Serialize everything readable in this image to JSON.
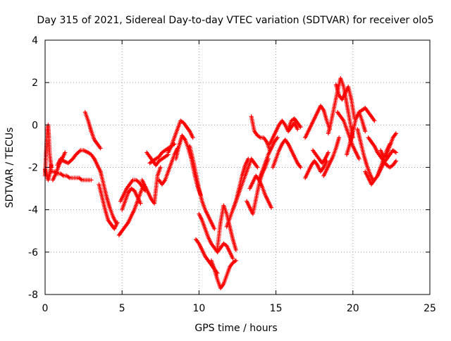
{
  "chart_data": {
    "type": "scatter",
    "title": "Day 315 of 2021, Sidereal Day-to-day VTEC variation (SDTVAR) for receiver olo5",
    "xlabel": "GPS time / hours",
    "ylabel": "SDTVAR / TECUs",
    "xlim": [
      0,
      25
    ],
    "ylim": [
      -8,
      4
    ],
    "xticks": [
      0,
      5,
      10,
      15,
      20,
      25
    ],
    "yticks": [
      -8,
      -6,
      -4,
      -2,
      0,
      2,
      4
    ],
    "grid": true,
    "legend": "none",
    "marker": "+",
    "color": "#ff0000",
    "series": [
      {
        "x": [
          0.0,
          0.05,
          0.1,
          0.15,
          0.2,
          0.25,
          0.3,
          0.4
        ],
        "y": [
          -2.4,
          -1.5,
          -0.8,
          -0.2,
          0.0,
          -0.6,
          -1.4,
          -2.0
        ]
      },
      {
        "x": [
          0.0,
          0.1,
          0.2,
          0.3,
          0.4
        ],
        "y": [
          -2.1,
          -2.4,
          -2.6,
          -2.3,
          -1.9
        ]
      },
      {
        "x": [
          0.4,
          0.6,
          0.8,
          1.0,
          1.2,
          1.4,
          1.6,
          1.8,
          2.0,
          2.2,
          2.4,
          2.6,
          2.8,
          3.0
        ],
        "y": [
          -2.2,
          -2.2,
          -2.3,
          -2.3,
          -2.4,
          -2.4,
          -2.5,
          -2.5,
          -2.5,
          -2.5,
          -2.6,
          -2.6,
          -2.6,
          -2.6
        ]
      },
      {
        "x": [
          0.8,
          1.0,
          1.2,
          1.5,
          1.8,
          2.0,
          2.3,
          2.5,
          2.8,
          3.0,
          3.2,
          3.4,
          3.6
        ],
        "y": [
          -1.9,
          -1.6,
          -1.7,
          -1.8,
          -1.6,
          -1.4,
          -1.2,
          -1.2,
          -1.3,
          -1.4,
          -1.6,
          -1.9,
          -2.2
        ]
      },
      {
        "x": [
          0.5,
          0.7,
          0.9,
          1.1,
          1.3
        ],
        "y": [
          -2.6,
          -2.3,
          -1.9,
          -1.6,
          -1.3
        ]
      },
      {
        "x": [
          2.6,
          2.8,
          3.0,
          3.2,
          3.4,
          3.6
        ],
        "y": [
          0.6,
          0.2,
          -0.3,
          -0.7,
          -0.9,
          -1.1
        ]
      },
      {
        "x": [
          3.6,
          3.8,
          4.0,
          4.2,
          4.4,
          4.6
        ],
        "y": [
          -2.2,
          -2.8,
          -3.4,
          -3.9,
          -4.3,
          -4.6
        ]
      },
      {
        "x": [
          3.5,
          3.7,
          3.9,
          4.1,
          4.3,
          4.5,
          4.7
        ],
        "y": [
          -2.8,
          -3.4,
          -4.0,
          -4.5,
          -4.7,
          -4.9,
          -4.6
        ]
      },
      {
        "x": [
          4.8,
          5.0,
          5.2,
          5.4,
          5.6,
          5.8,
          6.0,
          6.2,
          6.4
        ],
        "y": [
          -5.2,
          -5.0,
          -4.8,
          -4.6,
          -4.3,
          -4.0,
          -3.6,
          -3.2,
          -2.8
        ]
      },
      {
        "x": [
          4.9,
          5.1,
          5.3,
          5.5,
          5.7,
          5.9,
          6.1,
          6.3,
          6.5
        ],
        "y": [
          -3.6,
          -3.3,
          -3.0,
          -2.8,
          -2.6,
          -2.6,
          -2.7,
          -2.9,
          -3.1
        ]
      },
      {
        "x": [
          5.0,
          5.2,
          5.4,
          5.6,
          5.8,
          6.0,
          6.2
        ],
        "y": [
          -4.0,
          -3.6,
          -3.2,
          -3.0,
          -3.1,
          -3.4,
          -3.7
        ]
      },
      {
        "x": [
          6.3,
          6.5,
          6.7,
          6.9,
          7.1,
          7.3,
          7.5
        ],
        "y": [
          -2.6,
          -2.9,
          -3.2,
          -3.5,
          -3.7,
          -2.4,
          -2.0
        ]
      },
      {
        "x": [
          6.6,
          6.8,
          7.0,
          7.2,
          7.4,
          7.6,
          7.8,
          8.0
        ],
        "y": [
          -1.3,
          -1.5,
          -1.7,
          -1.9,
          -1.7,
          -1.6,
          -1.5,
          -1.4
        ]
      },
      {
        "x": [
          6.8,
          7.0,
          7.2,
          7.4,
          7.6,
          7.8,
          8.0,
          8.2,
          8.4
        ],
        "y": [
          -1.8,
          -1.7,
          -1.6,
          -1.5,
          -1.3,
          -1.2,
          -1.1,
          -1.0,
          -0.9
        ]
      },
      {
        "x": [
          7.4,
          7.6,
          7.8,
          8.0,
          8.2,
          8.4,
          8.6
        ],
        "y": [
          -2.6,
          -2.8,
          -2.6,
          -2.2,
          -1.8,
          -1.4,
          -1.1
        ]
      },
      {
        "x": [
          8.0,
          8.2,
          8.4,
          8.6,
          8.8,
          9.0,
          9.2,
          9.4,
          9.6
        ],
        "y": [
          -1.3,
          -1.0,
          -0.6,
          -0.2,
          0.2,
          0.1,
          -0.1,
          -0.3,
          -0.6
        ]
      },
      {
        "x": [
          8.5,
          8.7,
          8.9,
          9.1,
          9.3,
          9.5,
          9.7,
          9.9,
          10.1
        ],
        "y": [
          -1.6,
          -1.0,
          -0.5,
          -0.7,
          -1.1,
          -1.6,
          -2.3,
          -2.9,
          -3.3
        ]
      },
      {
        "x": [
          9.4,
          9.6,
          9.8,
          10.0,
          10.2,
          10.4,
          10.6,
          10.8,
          11.0
        ],
        "y": [
          -1.0,
          -1.6,
          -2.3,
          -3.0,
          -3.6,
          -4.0,
          -4.3,
          -4.6,
          -4.9
        ]
      },
      {
        "x": [
          9.8,
          10.0,
          10.2,
          10.4,
          10.6,
          10.8,
          11.0,
          11.2
        ],
        "y": [
          -5.4,
          -5.6,
          -5.9,
          -6.2,
          -6.4,
          -6.6,
          -6.8,
          -7.0
        ]
      },
      {
        "x": [
          10.0,
          10.2,
          10.4,
          10.6,
          10.8,
          11.0,
          11.2,
          11.4,
          11.6,
          11.8,
          12.0,
          12.2
        ],
        "y": [
          -4.2,
          -4.5,
          -4.9,
          -5.3,
          -5.6,
          -5.8,
          -6.0,
          -5.8,
          -5.6,
          -5.7,
          -6.0,
          -6.3
        ]
      },
      {
        "x": [
          10.8,
          11.0,
          11.2,
          11.4,
          11.6,
          11.8,
          12.0,
          12.2,
          12.4
        ],
        "y": [
          -6.4,
          -6.8,
          -7.3,
          -7.7,
          -7.5,
          -7.1,
          -6.7,
          -6.5,
          -6.4
        ]
      },
      {
        "x": [
          11.2,
          11.4,
          11.6,
          11.8,
          12.0,
          12.2,
          12.4
        ],
        "y": [
          -5.8,
          -4.6,
          -3.8,
          -4.2,
          -4.8,
          -5.4,
          -5.9
        ]
      },
      {
        "x": [
          11.8,
          12.0,
          12.2,
          12.4,
          12.6,
          12.8,
          13.0,
          13.2
        ],
        "y": [
          -4.8,
          -4.4,
          -4.0,
          -3.6,
          -3.0,
          -2.4,
          -1.9,
          -1.6
        ]
      },
      {
        "x": [
          12.2,
          12.4,
          12.6,
          12.8,
          13.0,
          13.2,
          13.4,
          13.6,
          13.8
        ],
        "y": [
          -4.0,
          -3.6,
          -3.2,
          -2.8,
          -2.4,
          -2.0,
          -1.6,
          -1.8,
          -2.0
        ]
      },
      {
        "x": [
          13.1,
          13.3,
          13.5,
          13.7,
          13.9,
          14.1,
          14.3,
          14.5
        ],
        "y": [
          -3.6,
          -3.9,
          -4.2,
          -3.5,
          -2.8,
          -2.3,
          -2.0,
          -1.6
        ]
      },
      {
        "x": [
          13.3,
          13.5,
          13.7,
          13.9,
          14.1,
          14.3,
          14.5,
          14.7
        ],
        "y": [
          -3.0,
          -2.7,
          -2.4,
          -2.6,
          -2.9,
          -3.3,
          -3.6,
          -3.9
        ]
      },
      {
        "x": [
          13.4,
          13.6,
          13.8,
          14.0,
          14.2,
          14.4,
          14.6
        ],
        "y": [
          0.4,
          -0.3,
          -0.5,
          -0.6,
          -0.6,
          -0.8,
          -1.2
        ]
      },
      {
        "x": [
          13.9,
          14.1,
          14.3,
          14.5,
          14.7,
          14.9,
          15.1
        ],
        "y": [
          -2.6,
          -2.2,
          -1.8,
          -1.4,
          -1.1,
          -0.8,
          -0.6
        ]
      },
      {
        "x": [
          14.6,
          14.8,
          15.0,
          15.2,
          15.4,
          15.6,
          15.8,
          16.0,
          16.2,
          16.4
        ],
        "y": [
          -0.9,
          -0.6,
          -0.3,
          0.0,
          0.2,
          0.0,
          -0.3,
          -0.1,
          0.1,
          -0.2
        ]
      },
      {
        "x": [
          14.8,
          15.0,
          15.2,
          15.4,
          15.6,
          15.8,
          16.0,
          16.2,
          16.4,
          16.6
        ],
        "y": [
          -2.0,
          -1.6,
          -1.2,
          -0.9,
          -0.7,
          -0.9,
          -1.2,
          -1.5,
          -1.8,
          -2.0
        ]
      },
      {
        "x": [
          15.8,
          16.0,
          16.2,
          16.4,
          16.6
        ],
        "y": [
          -0.2,
          0.2,
          0.3,
          0.1,
          -0.1
        ]
      },
      {
        "x": [
          16.9,
          17.1,
          17.3,
          17.5,
          17.7,
          17.9,
          18.1,
          18.3,
          18.5
        ],
        "y": [
          -0.6,
          -0.3,
          0.0,
          0.3,
          0.6,
          0.9,
          0.7,
          0.2,
          -0.2
        ]
      },
      {
        "x": [
          16.9,
          17.1,
          17.3,
          17.5,
          17.7,
          17.9,
          18.1,
          18.3
        ],
        "y": [
          -2.5,
          -2.2,
          -1.9,
          -1.7,
          -1.9,
          -2.2,
          -2.0,
          -1.7
        ]
      },
      {
        "x": [
          17.4,
          17.6,
          17.8,
          18.0,
          18.2,
          18.4
        ],
        "y": [
          -1.2,
          -1.4,
          -1.6,
          -1.8,
          -1.6,
          -1.3
        ]
      },
      {
        "x": [
          18.1,
          18.3,
          18.5,
          18.7,
          18.9,
          19.1
        ],
        "y": [
          -2.4,
          -2.1,
          -1.8,
          -1.5,
          -1.1,
          -0.6
        ]
      },
      {
        "x": [
          18.4,
          18.6,
          18.8,
          19.0,
          19.2,
          19.4,
          19.6,
          19.8,
          20.0
        ],
        "y": [
          -0.4,
          0.2,
          0.9,
          1.6,
          2.2,
          1.8,
          1.0,
          0.2,
          -0.6
        ]
      },
      {
        "x": [
          18.9,
          19.1,
          19.3,
          19.5,
          19.7,
          19.9,
          20.1
        ],
        "y": [
          1.9,
          1.4,
          1.2,
          1.5,
          1.8,
          1.2,
          0.3
        ]
      },
      {
        "x": [
          19.0,
          19.2,
          19.4,
          19.6,
          19.8,
          20.0,
          20.2,
          20.4
        ],
        "y": [
          0.6,
          0.4,
          0.2,
          -0.2,
          -0.6,
          -1.0,
          -1.3,
          -1.6
        ]
      },
      {
        "x": [
          19.6,
          19.8,
          20.0,
          20.2,
          20.4,
          20.6,
          20.8
        ],
        "y": [
          -1.4,
          -0.9,
          -0.3,
          0.3,
          0.6,
          0.2,
          -0.3
        ]
      },
      {
        "x": [
          20.3,
          20.5,
          20.7,
          20.9,
          21.1,
          21.3
        ],
        "y": [
          -0.2,
          -0.8,
          -1.4,
          -1.9,
          -2.3,
          -2.6
        ]
      },
      {
        "x": [
          20.4,
          20.6,
          20.8,
          21.0,
          21.2,
          21.4
        ],
        "y": [
          0.6,
          0.7,
          0.8,
          0.6,
          0.4,
          0.2
        ]
      },
      {
        "x": [
          20.8,
          21.0,
          21.2,
          21.4,
          21.6,
          21.8,
          22.0,
          22.2,
          22.4,
          22.6,
          22.8
        ],
        "y": [
          -2.2,
          -2.5,
          -2.8,
          -2.6,
          -2.4,
          -2.1,
          -1.8,
          -1.6,
          -1.4,
          -1.2,
          -1.3
        ]
      },
      {
        "x": [
          21.0,
          21.2,
          21.4,
          21.6,
          21.8,
          22.0,
          22.2,
          22.4,
          22.6,
          22.8
        ],
        "y": [
          -0.6,
          -0.8,
          -1.0,
          -1.3,
          -1.5,
          -1.7,
          -1.9,
          -2.0,
          -1.9,
          -1.7
        ]
      },
      {
        "x": [
          21.8,
          22.0,
          22.2,
          22.4,
          22.6,
          22.8
        ],
        "y": [
          -1.2,
          -1.5,
          -1.4,
          -1.0,
          -0.6,
          -0.4
        ]
      },
      {
        "x": [
          21.6,
          21.8,
          22.0,
          22.2,
          22.4
        ],
        "y": [
          -2.4,
          -2.0,
          -1.6,
          -1.2,
          -0.9
        ]
      }
    ]
  }
}
